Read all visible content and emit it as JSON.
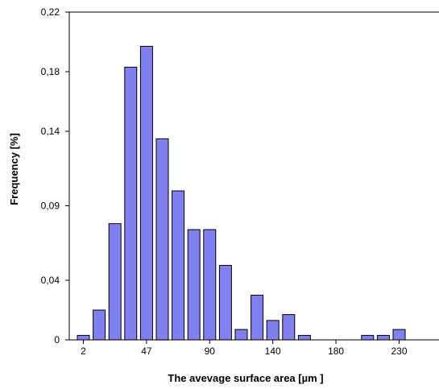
{
  "chart_data": {
    "type": "bar",
    "xlabel": "The avevage surface area  [µm ]",
    "ylabel": "Frequency  [%]",
    "ylim": [
      0,
      0.22
    ],
    "y_ticks": [
      "0",
      "0,04",
      "0,09",
      "0,14",
      "0,18",
      "0,22"
    ],
    "y_tick_values": [
      0,
      0.04,
      0.09,
      0.14,
      0.18,
      0.22
    ],
    "x_ticks": [
      "2",
      "47",
      "90",
      "140",
      "180",
      "230"
    ],
    "x_tick_bins": [
      0,
      4,
      8,
      12,
      16,
      20
    ],
    "bin_count": 23,
    "values": [
      0.003,
      0.02,
      0.078,
      0.183,
      0.197,
      0.135,
      0.1,
      0.074,
      0.074,
      0.05,
      0.007,
      0.03,
      0.013,
      0.017,
      0.003,
      0,
      0,
      0,
      0.003,
      0.003,
      0.007,
      0,
      0
    ],
    "bar_color": "#8080f0",
    "bar_stroke": "#000000",
    "grid": false,
    "legend": "none"
  }
}
